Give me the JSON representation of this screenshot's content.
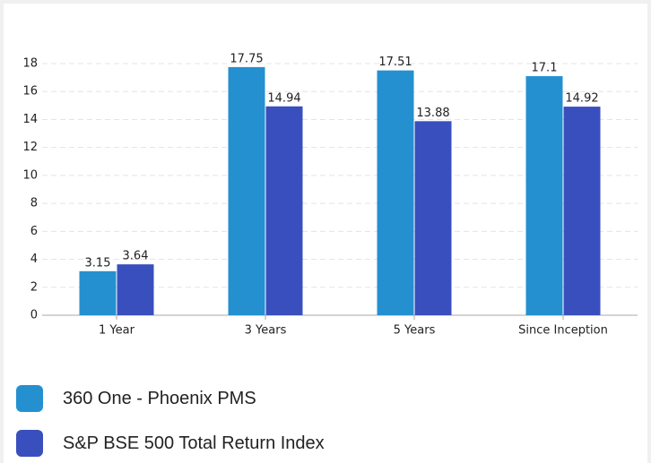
{
  "chart_data": {
    "type": "bar",
    "categories": [
      "1 Year",
      "3 Years",
      "5 Years",
      "Since Inception"
    ],
    "series": [
      {
        "name": "360 One - Phoenix PMS",
        "color": "#2490d0",
        "values": [
          3.15,
          17.75,
          17.51,
          17.1
        ]
      },
      {
        "name": "S&P BSE 500 Total Return Index",
        "color": "#3a4fbe",
        "values": [
          3.64,
          14.94,
          13.88,
          14.92
        ]
      }
    ],
    "ylim": [
      0,
      18
    ],
    "yticks": [
      0,
      2,
      4,
      6,
      8,
      10,
      12,
      14,
      16,
      18
    ],
    "grid": true
  }
}
